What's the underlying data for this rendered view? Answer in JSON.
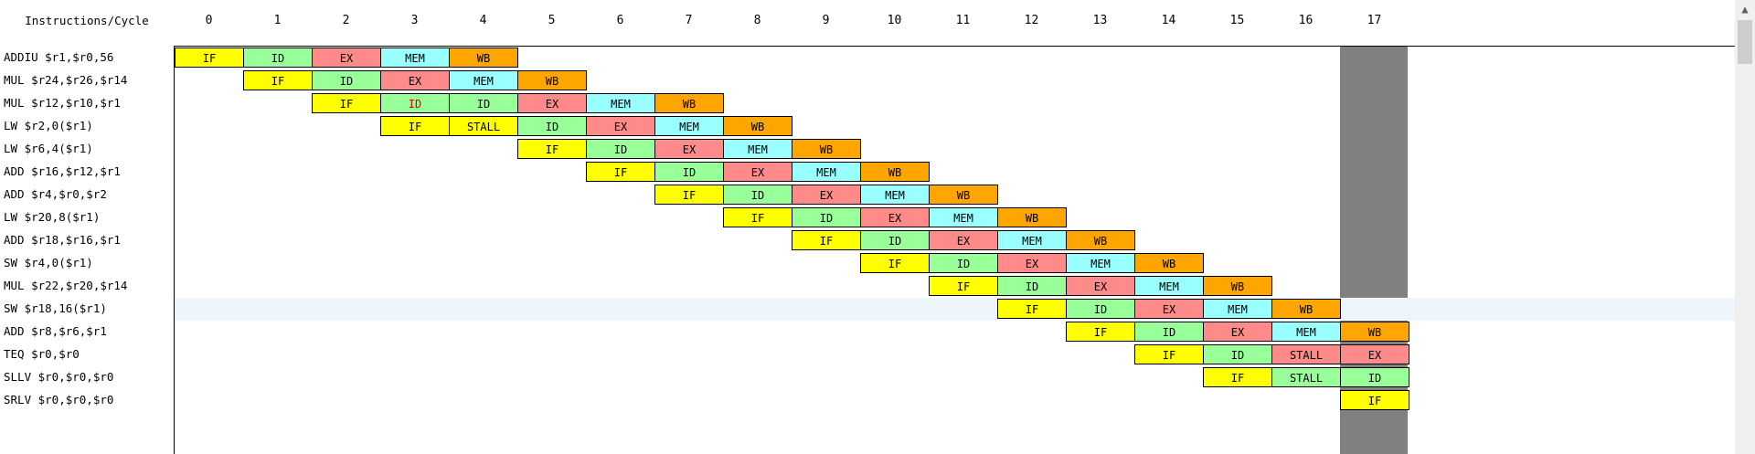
{
  "header": {
    "title": "Instructions/Cycle",
    "cycles": [
      "0",
      "1",
      "2",
      "3",
      "4",
      "5",
      "6",
      "7",
      "8",
      "9",
      "10",
      "11",
      "12",
      "13",
      "14",
      "15",
      "16",
      "17"
    ]
  },
  "current_cycle": 17,
  "selected_row": 11,
  "colors": {
    "IF": "#ffff00",
    "ID": "#99ff99",
    "EX": "#ff8a8a",
    "MEM": "#99ffff",
    "WB": "#ffa500",
    "STALL": "#ff8a8a",
    "current_cycle_column": "#808080",
    "selected_row": "#eef6fc"
  },
  "instructions": [
    {
      "text": "ADDIU $r1,$r0,56",
      "stages": [
        {
          "c": 0,
          "s": "IF"
        },
        {
          "c": 1,
          "s": "ID"
        },
        {
          "c": 2,
          "s": "EX"
        },
        {
          "c": 3,
          "s": "MEM"
        },
        {
          "c": 4,
          "s": "WB"
        }
      ]
    },
    {
      "text": "MUL $r24,$r26,$r14",
      "stages": [
        {
          "c": 1,
          "s": "IF"
        },
        {
          "c": 2,
          "s": "ID"
        },
        {
          "c": 3,
          "s": "EX"
        },
        {
          "c": 4,
          "s": "MEM"
        },
        {
          "c": 5,
          "s": "WB"
        }
      ]
    },
    {
      "text": "MUL $r12,$r10,$r1",
      "stages": [
        {
          "c": 2,
          "s": "IF"
        },
        {
          "c": 3,
          "s": "ID",
          "red": true
        },
        {
          "c": 4,
          "s": "ID"
        },
        {
          "c": 5,
          "s": "EX"
        },
        {
          "c": 6,
          "s": "MEM"
        },
        {
          "c": 7,
          "s": "WB"
        }
      ]
    },
    {
      "text": "LW $r2,0($r1)",
      "stages": [
        {
          "c": 3,
          "s": "IF"
        },
        {
          "c": 4,
          "s": "STALL",
          "cls": "IF"
        },
        {
          "c": 5,
          "s": "ID"
        },
        {
          "c": 6,
          "s": "EX"
        },
        {
          "c": 7,
          "s": "MEM"
        },
        {
          "c": 8,
          "s": "WB"
        }
      ]
    },
    {
      "text": "LW $r6,4($r1)",
      "stages": [
        {
          "c": 5,
          "s": "IF"
        },
        {
          "c": 6,
          "s": "ID"
        },
        {
          "c": 7,
          "s": "EX"
        },
        {
          "c": 8,
          "s": "MEM"
        },
        {
          "c": 9,
          "s": "WB"
        }
      ]
    },
    {
      "text": "ADD $r16,$r12,$r1",
      "stages": [
        {
          "c": 6,
          "s": "IF"
        },
        {
          "c": 7,
          "s": "ID"
        },
        {
          "c": 8,
          "s": "EX"
        },
        {
          "c": 9,
          "s": "MEM"
        },
        {
          "c": 10,
          "s": "WB"
        }
      ]
    },
    {
      "text": "ADD $r4,$r0,$r2",
      "stages": [
        {
          "c": 7,
          "s": "IF"
        },
        {
          "c": 8,
          "s": "ID"
        },
        {
          "c": 9,
          "s": "EX"
        },
        {
          "c": 10,
          "s": "MEM"
        },
        {
          "c": 11,
          "s": "WB"
        }
      ]
    },
    {
      "text": "LW $r20,8($r1)",
      "stages": [
        {
          "c": 8,
          "s": "IF"
        },
        {
          "c": 9,
          "s": "ID"
        },
        {
          "c": 10,
          "s": "EX"
        },
        {
          "c": 11,
          "s": "MEM"
        },
        {
          "c": 12,
          "s": "WB"
        }
      ]
    },
    {
      "text": "ADD $r18,$r16,$r1",
      "stages": [
        {
          "c": 9,
          "s": "IF"
        },
        {
          "c": 10,
          "s": "ID"
        },
        {
          "c": 11,
          "s": "EX"
        },
        {
          "c": 12,
          "s": "MEM"
        },
        {
          "c": 13,
          "s": "WB"
        }
      ]
    },
    {
      "text": "SW $r4,0($r1)",
      "stages": [
        {
          "c": 10,
          "s": "IF"
        },
        {
          "c": 11,
          "s": "ID"
        },
        {
          "c": 12,
          "s": "EX"
        },
        {
          "c": 13,
          "s": "MEM"
        },
        {
          "c": 14,
          "s": "WB"
        }
      ]
    },
    {
      "text": "MUL $r22,$r20,$r14",
      "stages": [
        {
          "c": 11,
          "s": "IF"
        },
        {
          "c": 12,
          "s": "ID"
        },
        {
          "c": 13,
          "s": "EX"
        },
        {
          "c": 14,
          "s": "MEM"
        },
        {
          "c": 15,
          "s": "WB"
        }
      ]
    },
    {
      "text": "SW $r18,16($r1)",
      "stages": [
        {
          "c": 12,
          "s": "IF"
        },
        {
          "c": 13,
          "s": "ID"
        },
        {
          "c": 14,
          "s": "EX"
        },
        {
          "c": 15,
          "s": "MEM"
        },
        {
          "c": 16,
          "s": "WB"
        }
      ]
    },
    {
      "text": "ADD $r8,$r6,$r1",
      "stages": [
        {
          "c": 13,
          "s": "IF"
        },
        {
          "c": 14,
          "s": "ID"
        },
        {
          "c": 15,
          "s": "EX"
        },
        {
          "c": 16,
          "s": "MEM"
        },
        {
          "c": 17,
          "s": "WB"
        }
      ]
    },
    {
      "text": "TEQ $r0,$r0",
      "stages": [
        {
          "c": 14,
          "s": "IF"
        },
        {
          "c": 15,
          "s": "ID"
        },
        {
          "c": 16,
          "s": "STALL"
        },
        {
          "c": 17,
          "s": "EX"
        }
      ]
    },
    {
      "text": "SLLV $r0,$r0,$r0",
      "stages": [
        {
          "c": 15,
          "s": "IF"
        },
        {
          "c": 16,
          "s": "STALL",
          "cls": "ID"
        },
        {
          "c": 17,
          "s": "ID"
        }
      ]
    },
    {
      "text": "SRLV $r0,$r0,$r0",
      "stages": [
        {
          "c": 17,
          "s": "IF"
        }
      ]
    }
  ]
}
